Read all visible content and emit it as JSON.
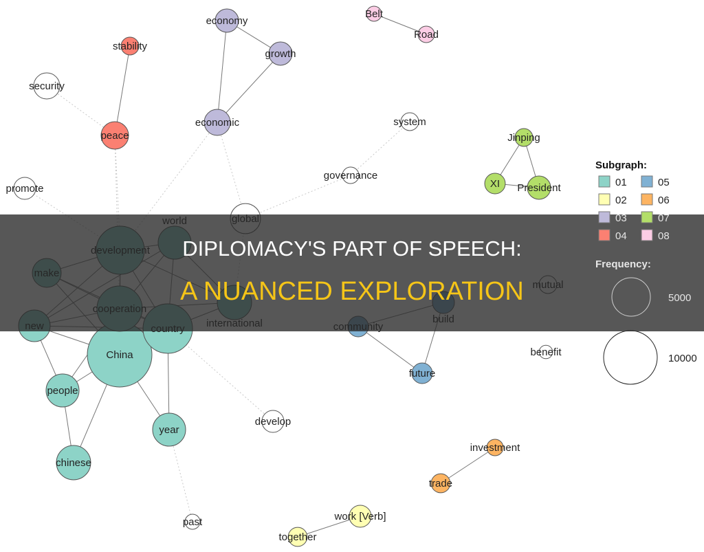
{
  "banner": {
    "line1": "DIPLOMACY'S PART OF SPEECH:",
    "line2": "A NUANCED EXPLORATION",
    "line1_color": "#ffffff",
    "line2_color": "#f5c518"
  },
  "legend": {
    "subgraph_title": "Subgraph:",
    "subgraphs": [
      {
        "id": "01",
        "color": "#8dd3c7"
      },
      {
        "id": "02",
        "color": "#ffffb3"
      },
      {
        "id": "03",
        "color": "#bebada"
      },
      {
        "id": "04",
        "color": "#fb8072"
      },
      {
        "id": "05",
        "color": "#80b1d3"
      },
      {
        "id": "06",
        "color": "#fdb462"
      },
      {
        "id": "07",
        "color": "#b3de69"
      },
      {
        "id": "08",
        "color": "#fccde5"
      }
    ],
    "frequency_title": "Frequency:",
    "frequency_sizes": [
      {
        "label": "5000",
        "value": 5000
      },
      {
        "label": "10000",
        "value": 10000
      }
    ]
  },
  "nodes": [
    {
      "id": "economy",
      "label": "economy",
      "group": "03",
      "freq": 1800
    },
    {
      "id": "growth",
      "label": "growth",
      "group": "03",
      "freq": 1800
    },
    {
      "id": "economic",
      "label": "economic",
      "group": "03",
      "freq": 2250
    },
    {
      "id": "Belt",
      "label": "Belt",
      "group": "08",
      "freq": 750
    },
    {
      "id": "Road",
      "label": "Road",
      "group": "08",
      "freq": 900
    },
    {
      "id": "stability",
      "label": "stability",
      "group": "04",
      "freq": 1050
    },
    {
      "id": "peace",
      "label": "peace",
      "group": "04",
      "freq": 2500
    },
    {
      "id": "security",
      "label": "security",
      "group": null,
      "freq": 2250
    },
    {
      "id": "system",
      "label": "system",
      "group": null,
      "freq": 1050
    },
    {
      "id": "governance",
      "label": "governance",
      "group": null,
      "freq": 900
    },
    {
      "id": "Jinping",
      "label": "Jinping",
      "group": "07",
      "freq": 1050
    },
    {
      "id": "XI",
      "label": "XI",
      "group": "07",
      "freq": 1400
    },
    {
      "id": "President",
      "label": "President",
      "group": "07",
      "freq": 1800
    },
    {
      "id": "promote",
      "label": "promote",
      "group": null,
      "freq": 1600
    },
    {
      "id": "global",
      "label": "global",
      "group": null,
      "freq": 3000
    },
    {
      "id": "development",
      "label": "development",
      "group": "01",
      "freq": 7650
    },
    {
      "id": "world",
      "label": "world",
      "group": "01",
      "freq": 3600
    },
    {
      "id": "make",
      "label": "make",
      "group": "01",
      "freq": 2750
    },
    {
      "id": "cooperation",
      "label": "cooperation",
      "group": "01",
      "freq": 6800
    },
    {
      "id": "international",
      "label": "international",
      "group": "01",
      "freq": 3900
    },
    {
      "id": "new",
      "label": "new",
      "group": "01",
      "freq": 3300
    },
    {
      "id": "country",
      "label": "country",
      "group": "01",
      "freq": 8100
    },
    {
      "id": "China",
      "label": "China",
      "group": "01",
      "freq": 13800
    },
    {
      "id": "people",
      "label": "people",
      "group": "01",
      "freq": 3600
    },
    {
      "id": "year",
      "label": "year",
      "group": "01",
      "freq": 3600
    },
    {
      "id": "chinese",
      "label": "chinese",
      "group": "01",
      "freq": 3900
    },
    {
      "id": "develop",
      "label": "develop",
      "group": null,
      "freq": 1600
    },
    {
      "id": "past",
      "label": "past",
      "group": null,
      "freq": 750
    },
    {
      "id": "community",
      "label": "community",
      "group": "05",
      "freq": 1400
    },
    {
      "id": "build",
      "label": "build",
      "group": "05",
      "freq": 1600
    },
    {
      "id": "future",
      "label": "future",
      "group": "05",
      "freq": 1400
    },
    {
      "id": "mutual",
      "label": "mutual",
      "group": null,
      "freq": 1050
    },
    {
      "id": "benefit",
      "label": "benefit",
      "group": null,
      "freq": 600
    },
    {
      "id": "investment",
      "label": "investment",
      "group": "06",
      "freq": 900
    },
    {
      "id": "trade",
      "label": "trade",
      "group": "06",
      "freq": 1200
    },
    {
      "id": "work",
      "label": "work [Verb]",
      "group": "02",
      "freq": 1600
    },
    {
      "id": "together",
      "label": "together",
      "group": "02",
      "freq": 1200
    }
  ],
  "edges": [
    [
      "economy",
      "growth",
      "solid"
    ],
    [
      "economy",
      "economic",
      "solid"
    ],
    [
      "growth",
      "economic",
      "solid"
    ],
    [
      "Belt",
      "Road",
      "solid"
    ],
    [
      "stability",
      "peace",
      "solid"
    ],
    [
      "Jinping",
      "XI",
      "solid"
    ],
    [
      "Jinping",
      "President",
      "solid"
    ],
    [
      "XI",
      "President",
      "solid"
    ],
    [
      "community",
      "future",
      "solid"
    ],
    [
      "build",
      "future",
      "solid"
    ],
    [
      "community",
      "build",
      "solid"
    ],
    [
      "investment",
      "trade",
      "solid"
    ],
    [
      "work",
      "together",
      "solid"
    ],
    [
      "security",
      "peace",
      "dotted"
    ],
    [
      "peace",
      "development",
      "dotted"
    ],
    [
      "peace",
      "cooperation",
      "dotted"
    ],
    [
      "system",
      "governance",
      "dotted"
    ],
    [
      "governance",
      "global",
      "dotted"
    ],
    [
      "economic",
      "global",
      "dotted"
    ],
    [
      "economic",
      "development",
      "dotted"
    ],
    [
      "promote",
      "development",
      "dotted"
    ],
    [
      "global",
      "international",
      "dotted"
    ],
    [
      "country",
      "develop",
      "dotted"
    ],
    [
      "year",
      "past",
      "dotted"
    ],
    [
      "development",
      "world",
      "solid"
    ],
    [
      "development",
      "make",
      "solid"
    ],
    [
      "development",
      "cooperation",
      "solid"
    ],
    [
      "development",
      "country",
      "solid"
    ],
    [
      "development",
      "international",
      "solid"
    ],
    [
      "development",
      "new",
      "solid"
    ],
    [
      "development",
      "China",
      "solid"
    ],
    [
      "world",
      "cooperation",
      "solid"
    ],
    [
      "world",
      "country",
      "solid"
    ],
    [
      "world",
      "new",
      "solid"
    ],
    [
      "world",
      "international",
      "solid"
    ],
    [
      "make",
      "cooperation",
      "solid"
    ],
    [
      "make",
      "country",
      "solid"
    ],
    [
      "make",
      "China",
      "solid"
    ],
    [
      "cooperation",
      "new",
      "solid"
    ],
    [
      "cooperation",
      "country",
      "solid"
    ],
    [
      "cooperation",
      "international",
      "solid"
    ],
    [
      "cooperation",
      "China",
      "solid"
    ],
    [
      "new",
      "China",
      "solid"
    ],
    [
      "new",
      "country",
      "solid"
    ],
    [
      "new",
      "people",
      "solid"
    ],
    [
      "country",
      "international",
      "solid"
    ],
    [
      "country",
      "China",
      "solid"
    ],
    [
      "country",
      "year",
      "solid"
    ],
    [
      "China",
      "people",
      "solid"
    ],
    [
      "China",
      "chinese",
      "solid"
    ],
    [
      "China",
      "year",
      "solid"
    ],
    [
      "people",
      "chinese",
      "solid"
    ],
    [
      "cooperation",
      "people",
      "solid"
    ]
  ]
}
